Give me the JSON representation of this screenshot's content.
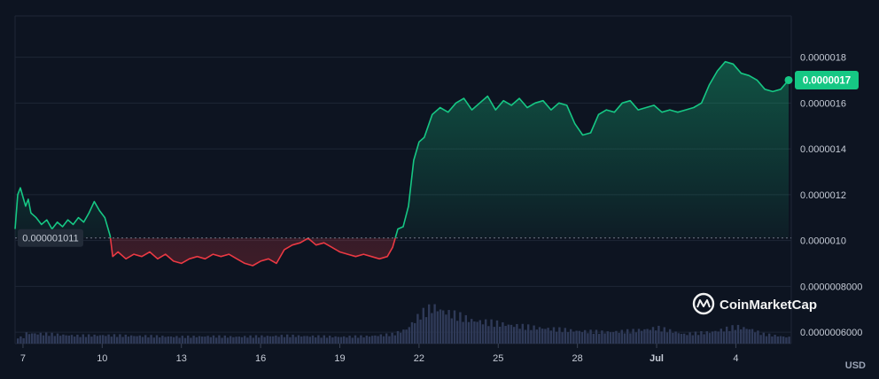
{
  "chart_data": {
    "type": "area",
    "currency": "USD",
    "ylim": [
      5.5e-07,
      1.98e-06
    ],
    "y_ticks": [
      {
        "value": 1.8e-06,
        "label": "0.0000018"
      },
      {
        "value": 1.6e-06,
        "label": "0.0000016"
      },
      {
        "value": 1.4e-06,
        "label": "0.0000014"
      },
      {
        "value": 1.2e-06,
        "label": "0.0000012"
      },
      {
        "value": 1e-06,
        "label": "0.0000010"
      },
      {
        "value": 8e-07,
        "label": "0.0000008000"
      },
      {
        "value": 6e-07,
        "label": "0.0000006000"
      }
    ],
    "x_ticks": [
      {
        "day": 7,
        "label": "7"
      },
      {
        "day": 10,
        "label": "10"
      },
      {
        "day": 13,
        "label": "13"
      },
      {
        "day": 16,
        "label": "16"
      },
      {
        "day": 19,
        "label": "19"
      },
      {
        "day": 22,
        "label": "22"
      },
      {
        "day": 25,
        "label": "25"
      },
      {
        "day": 28,
        "label": "28"
      },
      {
        "day": 31,
        "label": "Jul"
      },
      {
        "day": 34,
        "label": "4"
      }
    ],
    "baseline": {
      "value": 1.011e-06,
      "label": "0.000001011"
    },
    "current": {
      "value": 1.7e-06,
      "label": "0.0000017"
    },
    "colors": {
      "up": "#16c784",
      "down": "#ea3943",
      "grid": "#1e2636",
      "label_bg": "#16c784",
      "baseline_bg": "#222b38"
    },
    "price_series": [
      [
        6.7,
        1.05e-06
      ],
      [
        6.8,
        1.2e-06
      ],
      [
        6.9,
        1.23e-06
      ],
      [
        7.0,
        1.19e-06
      ],
      [
        7.1,
        1.15e-06
      ],
      [
        7.2,
        1.18e-06
      ],
      [
        7.3,
        1.12e-06
      ],
      [
        7.5,
        1.1e-06
      ],
      [
        7.7,
        1.07e-06
      ],
      [
        7.9,
        1.09e-06
      ],
      [
        8.1,
        1.05e-06
      ],
      [
        8.3,
        1.08e-06
      ],
      [
        8.5,
        1.06e-06
      ],
      [
        8.7,
        1.09e-06
      ],
      [
        8.9,
        1.07e-06
      ],
      [
        9.1,
        1.1e-06
      ],
      [
        9.3,
        1.08e-06
      ],
      [
        9.5,
        1.12e-06
      ],
      [
        9.7,
        1.17e-06
      ],
      [
        9.9,
        1.13e-06
      ],
      [
        10.1,
        1.1e-06
      ],
      [
        10.3,
        1.02e-06
      ],
      [
        10.4,
        9.3e-07
      ],
      [
        10.6,
        9.5e-07
      ],
      [
        10.9,
        9.2e-07
      ],
      [
        11.2,
        9.4e-07
      ],
      [
        11.5,
        9.3e-07
      ],
      [
        11.8,
        9.5e-07
      ],
      [
        12.1,
        9.2e-07
      ],
      [
        12.4,
        9.4e-07
      ],
      [
        12.7,
        9.1e-07
      ],
      [
        13.0,
        9e-07
      ],
      [
        13.3,
        9.2e-07
      ],
      [
        13.6,
        9.3e-07
      ],
      [
        13.9,
        9.2e-07
      ],
      [
        14.2,
        9.4e-07
      ],
      [
        14.5,
        9.3e-07
      ],
      [
        14.8,
        9.4e-07
      ],
      [
        15.1,
        9.2e-07
      ],
      [
        15.4,
        9e-07
      ],
      [
        15.7,
        8.9e-07
      ],
      [
        16.0,
        9.1e-07
      ],
      [
        16.3,
        9.2e-07
      ],
      [
        16.6,
        9e-07
      ],
      [
        16.9,
        9.6e-07
      ],
      [
        17.2,
        9.8e-07
      ],
      [
        17.5,
        9.9e-07
      ],
      [
        17.8,
        1.01e-06
      ],
      [
        18.1,
        9.8e-07
      ],
      [
        18.4,
        9.9e-07
      ],
      [
        18.7,
        9.7e-07
      ],
      [
        19.0,
        9.5e-07
      ],
      [
        19.3,
        9.4e-07
      ],
      [
        19.6,
        9.3e-07
      ],
      [
        19.9,
        9.4e-07
      ],
      [
        20.2,
        9.3e-07
      ],
      [
        20.5,
        9.2e-07
      ],
      [
        20.8,
        9.3e-07
      ],
      [
        21.0,
        9.7e-07
      ],
      [
        21.2,
        1.05e-06
      ],
      [
        21.4,
        1.06e-06
      ],
      [
        21.6,
        1.15e-06
      ],
      [
        21.8,
        1.35e-06
      ],
      [
        22.0,
        1.43e-06
      ],
      [
        22.2,
        1.45e-06
      ],
      [
        22.5,
        1.55e-06
      ],
      [
        22.8,
        1.58e-06
      ],
      [
        23.1,
        1.56e-06
      ],
      [
        23.4,
        1.6e-06
      ],
      [
        23.7,
        1.62e-06
      ],
      [
        24.0,
        1.57e-06
      ],
      [
        24.3,
        1.6e-06
      ],
      [
        24.6,
        1.63e-06
      ],
      [
        24.9,
        1.57e-06
      ],
      [
        25.2,
        1.61e-06
      ],
      [
        25.5,
        1.59e-06
      ],
      [
        25.8,
        1.62e-06
      ],
      [
        26.1,
        1.58e-06
      ],
      [
        26.4,
        1.6e-06
      ],
      [
        26.7,
        1.61e-06
      ],
      [
        27.0,
        1.57e-06
      ],
      [
        27.3,
        1.6e-06
      ],
      [
        27.6,
        1.59e-06
      ],
      [
        27.9,
        1.51e-06
      ],
      [
        28.2,
        1.46e-06
      ],
      [
        28.5,
        1.47e-06
      ],
      [
        28.8,
        1.55e-06
      ],
      [
        29.1,
        1.57e-06
      ],
      [
        29.4,
        1.56e-06
      ],
      [
        29.7,
        1.6e-06
      ],
      [
        30.0,
        1.61e-06
      ],
      [
        30.3,
        1.57e-06
      ],
      [
        30.6,
        1.58e-06
      ],
      [
        30.9,
        1.59e-06
      ],
      [
        31.2,
        1.56e-06
      ],
      [
        31.5,
        1.57e-06
      ],
      [
        31.8,
        1.56e-06
      ],
      [
        32.1,
        1.57e-06
      ],
      [
        32.4,
        1.58e-06
      ],
      [
        32.7,
        1.6e-06
      ],
      [
        33.0,
        1.68e-06
      ],
      [
        33.3,
        1.74e-06
      ],
      [
        33.6,
        1.78e-06
      ],
      [
        33.9,
        1.77e-06
      ],
      [
        34.2,
        1.73e-06
      ],
      [
        34.5,
        1.72e-06
      ],
      [
        34.8,
        1.7e-06
      ],
      [
        35.1,
        1.66e-06
      ],
      [
        35.4,
        1.65e-06
      ],
      [
        35.7,
        1.66e-06
      ],
      [
        36.0,
        1.7e-06
      ]
    ],
    "volume_series": [
      [
        7,
        20
      ],
      [
        8,
        18
      ],
      [
        9,
        15
      ],
      [
        10,
        16
      ],
      [
        11,
        15
      ],
      [
        12,
        14
      ],
      [
        13,
        13
      ],
      [
        14,
        14
      ],
      [
        15,
        13
      ],
      [
        16,
        14
      ],
      [
        17,
        15
      ],
      [
        18,
        14
      ],
      [
        19,
        13
      ],
      [
        20,
        14
      ],
      [
        21,
        18
      ],
      [
        21.5,
        28
      ],
      [
        22,
        55
      ],
      [
        22.5,
        70
      ],
      [
        23,
        60
      ],
      [
        23.5,
        52
      ],
      [
        24,
        44
      ],
      [
        25,
        38
      ],
      [
        26,
        32
      ],
      [
        27,
        28
      ],
      [
        28,
        24
      ],
      [
        29,
        22
      ],
      [
        30,
        24
      ],
      [
        31,
        30
      ],
      [
        32,
        18
      ],
      [
        33,
        22
      ],
      [
        34,
        32
      ],
      [
        34.5,
        28
      ],
      [
        35,
        18
      ],
      [
        36,
        12
      ]
    ]
  },
  "watermark": {
    "brand": "CoinMarketCap"
  },
  "currency_label": "USD"
}
